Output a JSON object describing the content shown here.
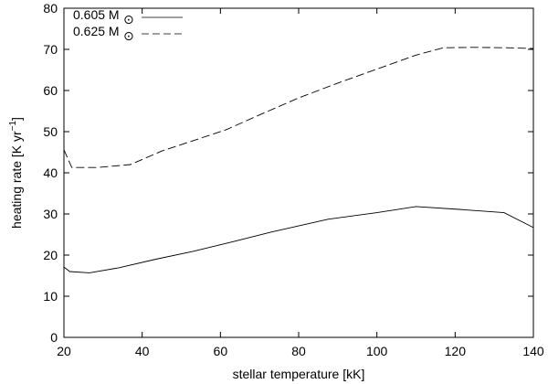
{
  "chart_data": {
    "type": "line",
    "xlabel": "stellar temperature [kK]",
    "ylabel": "heating rate [K yr",
    "ylabel_sup": "−1",
    "ylabel_close": "]",
    "xlim": [
      20,
      140
    ],
    "ylim": [
      0,
      80
    ],
    "xticks": [
      20,
      40,
      60,
      80,
      100,
      120,
      140
    ],
    "yticks": [
      0,
      10,
      20,
      30,
      40,
      50,
      60,
      70,
      80
    ],
    "legend_position": "top-left",
    "grid": false,
    "series": [
      {
        "name": "0.605 M",
        "name_symbol": "⊙",
        "style": "solid",
        "color": "#000000",
        "x": [
          20,
          21.5,
          26.5,
          34,
          43.5,
          53,
          63,
          73,
          87.5,
          100,
          110,
          121,
          132.5,
          140
        ],
        "y": [
          17.1,
          16.0,
          15.7,
          16.9,
          19.0,
          20.9,
          23.2,
          25.6,
          28.7,
          30.3,
          31.8,
          31.1,
          30.3,
          26.7
        ]
      },
      {
        "name": "0.625 M",
        "name_symbol": "⊙",
        "style": "dashed",
        "color": "#000000",
        "x": [
          20,
          22,
          28.5,
          37,
          45,
          53,
          61.5,
          71,
          80,
          90,
          100,
          110,
          117,
          125,
          133,
          140
        ],
        "y": [
          45.6,
          41.3,
          41.3,
          42.0,
          45.3,
          47.8,
          50.5,
          54.5,
          58.2,
          61.8,
          65.2,
          68.6,
          70.4,
          70.5,
          70.4,
          70.2
        ]
      }
    ]
  }
}
